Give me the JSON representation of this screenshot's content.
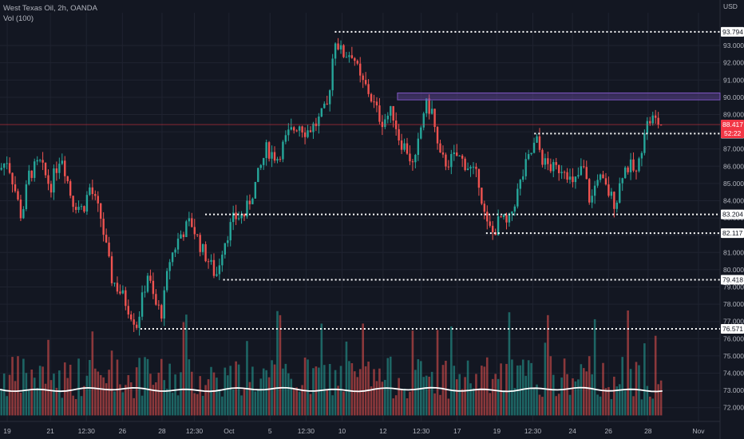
{
  "header": {
    "symbol_line": "West Texas Oil, 2h, OANDA",
    "indicator_line": "Vol (100)"
  },
  "axis": {
    "currency": "USD"
  },
  "chart_data": {
    "type": "candlestick",
    "ylim": [
      71.2,
      94.9
    ],
    "yticks": [
      "93.000",
      "92.000",
      "91.000",
      "90.000",
      "89.000",
      "88.000",
      "87.000",
      "86.000",
      "85.000",
      "84.000",
      "83.000",
      "82.000",
      "81.000",
      "80.000",
      "79.000",
      "78.000",
      "77.000",
      "76.000",
      "75.000",
      "74.000",
      "73.000",
      "72.000"
    ],
    "yticks_values": [
      93,
      92,
      91,
      90,
      89,
      88,
      87,
      86,
      85,
      84,
      83,
      82,
      81,
      80,
      79,
      78,
      77,
      76,
      75,
      74,
      73,
      72
    ],
    "xticks": [
      {
        "label": "19",
        "t": 0.01
      },
      {
        "label": "21",
        "t": 0.07
      },
      {
        "label": "12:30",
        "t": 0.12
      },
      {
        "label": "26",
        "t": 0.17
      },
      {
        "label": "28",
        "t": 0.225
      },
      {
        "label": "12:30",
        "t": 0.27
      },
      {
        "label": "Oct",
        "t": 0.318
      },
      {
        "label": "5",
        "t": 0.375
      },
      {
        "label": "12:30",
        "t": 0.425
      },
      {
        "label": "10",
        "t": 0.475
      },
      {
        "label": "12",
        "t": 0.532
      },
      {
        "label": "12:30",
        "t": 0.585
      },
      {
        "label": "17",
        "t": 0.635
      },
      {
        "label": "19",
        "t": 0.69
      },
      {
        "label": "12:30",
        "t": 0.74
      },
      {
        "label": "24",
        "t": 0.795
      },
      {
        "label": "26",
        "t": 0.845
      },
      {
        "label": "28",
        "t": 0.9
      },
      {
        "label": "Nov",
        "t": 0.97
      }
    ],
    "price_path": [
      [
        0,
        85.8
      ],
      [
        0.01,
        86.4
      ],
      [
        0.02,
        84.8
      ],
      [
        0.03,
        83.0
      ],
      [
        0.04,
        85.5
      ],
      [
        0.055,
        86.2
      ],
      [
        0.07,
        84.8
      ],
      [
        0.085,
        86.8
      ],
      [
        0.1,
        84.0
      ],
      [
        0.115,
        83.5
      ],
      [
        0.125,
        84.8
      ],
      [
        0.14,
        83.0
      ],
      [
        0.155,
        79.5
      ],
      [
        0.17,
        78.5
      ],
      [
        0.19,
        76.8
      ],
      [
        0.205,
        79.8
      ],
      [
        0.215,
        78.0
      ],
      [
        0.225,
        77.5
      ],
      [
        0.235,
        80.5
      ],
      [
        0.25,
        82.0
      ],
      [
        0.265,
        82.8
      ],
      [
        0.28,
        81.2
      ],
      [
        0.29,
        80.5
      ],
      [
        0.3,
        79.6
      ],
      [
        0.31,
        81.5
      ],
      [
        0.325,
        83.0
      ],
      [
        0.34,
        83.2
      ],
      [
        0.355,
        85.0
      ],
      [
        0.37,
        87.0
      ],
      [
        0.385,
        86.5
      ],
      [
        0.4,
        87.8
      ],
      [
        0.415,
        88.5
      ],
      [
        0.425,
        88.0
      ],
      [
        0.44,
        88.5
      ],
      [
        0.455,
        89.5
      ],
      [
        0.465,
        93.5
      ],
      [
        0.475,
        92.5
      ],
      [
        0.49,
        92.6
      ],
      [
        0.5,
        91.0
      ],
      [
        0.51,
        90.5
      ],
      [
        0.52,
        89.5
      ],
      [
        0.53,
        88.6
      ],
      [
        0.545,
        89.2
      ],
      [
        0.555,
        87.5
      ],
      [
        0.565,
        87.0
      ],
      [
        0.575,
        85.8
      ],
      [
        0.59,
        89.6
      ],
      [
        0.6,
        89.2
      ],
      [
        0.61,
        86.5
      ],
      [
        0.62,
        86.2
      ],
      [
        0.635,
        86.6
      ],
      [
        0.65,
        86.0
      ],
      [
        0.665,
        85.2
      ],
      [
        0.675,
        82.6
      ],
      [
        0.685,
        82.1
      ],
      [
        0.695,
        83.0
      ],
      [
        0.705,
        82.5
      ],
      [
        0.715,
        84.0
      ],
      [
        0.73,
        86.0
      ],
      [
        0.745,
        87.5
      ],
      [
        0.755,
        86.2
      ],
      [
        0.77,
        85.8
      ],
      [
        0.785,
        86.0
      ],
      [
        0.795,
        84.8
      ],
      [
        0.81,
        86.0
      ],
      [
        0.82,
        83.8
      ],
      [
        0.83,
        85.5
      ],
      [
        0.84,
        84.8
      ],
      [
        0.855,
        83.8
      ],
      [
        0.865,
        85.8
      ],
      [
        0.875,
        86.0
      ],
      [
        0.885,
        85.5
      ],
      [
        0.895,
        88.2
      ],
      [
        0.905,
        88.8
      ],
      [
        0.915,
        88.5
      ],
      [
        0.92,
        88.4
      ]
    ],
    "levels": [
      {
        "value": "93.794",
        "price": 93.794,
        "x_start": 0.465
      },
      {
        "value": "87.894",
        "price": 87.894,
        "x_start": 0.742
      },
      {
        "value": "83.204",
        "price": 83.204,
        "x_start": 0.285
      },
      {
        "value": "82.117",
        "price": 82.117,
        "x_start": 0.675
      },
      {
        "value": "79.418",
        "price": 79.418,
        "x_start": 0.31
      },
      {
        "value": "76.571",
        "price": 76.571,
        "x_start": 0.195
      }
    ],
    "resistance_zone": {
      "from_price": 89.85,
      "to_price": 90.25,
      "x_start": 0.552,
      "color": "#7e57c2"
    },
    "current_price": {
      "value": "88.417",
      "price": 88.417,
      "countdown": "52:22",
      "color": "#f23645"
    },
    "volume_ma_level": 73.05,
    "colors": {
      "up": "#26a69a",
      "down": "#ef5350",
      "grid": "#1f2330",
      "ma": "#ffffff",
      "level": "#ffffff"
    }
  }
}
